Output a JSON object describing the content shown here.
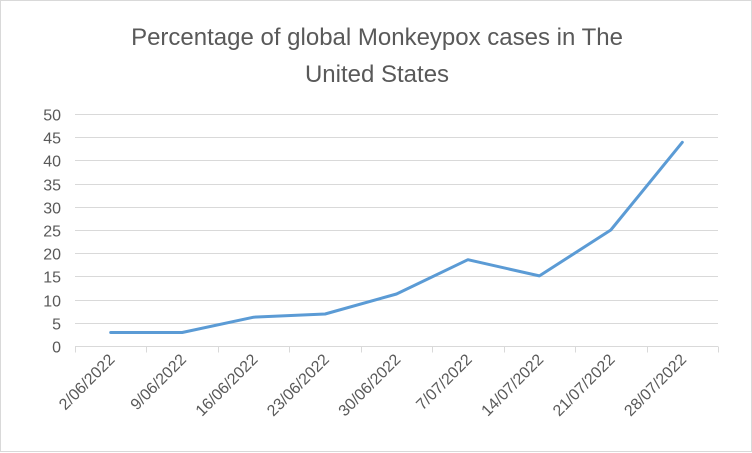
{
  "chart_data": {
    "type": "line",
    "title": "Percentage of global Monkeypox cases in The United States",
    "title_lines": [
      "Percentage of global Monkeypox cases in The",
      "United States"
    ],
    "xlabel": "",
    "ylabel": "",
    "categories": [
      "2/06/2022",
      "9/06/2022",
      "16/06/2022",
      "23/06/2022",
      "30/06/2022",
      "7/07/2022",
      "14/07/2022",
      "21/07/2022",
      "28/07/2022"
    ],
    "series": [
      {
        "values": [
          2.9,
          2.9,
          6.2,
          6.9,
          11.2,
          18.6,
          15.1,
          25.0,
          43.9
        ],
        "color": "#5b9bd5"
      }
    ],
    "ylim": [
      0,
      50
    ],
    "yticks": [
      0,
      5,
      10,
      15,
      20,
      25,
      30,
      35,
      40,
      45,
      50
    ],
    "grid": true,
    "legend": "none"
  }
}
